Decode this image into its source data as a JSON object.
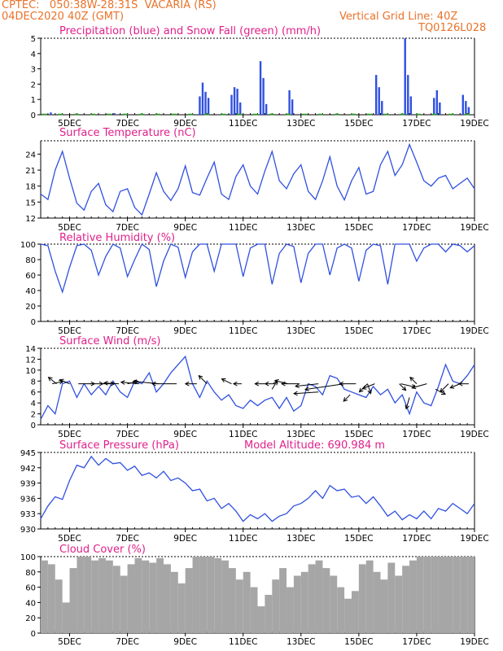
{
  "header": {
    "line1": "CPTEC:   050:38W-28:31S  VACARIA (RS)",
    "line2": "04DEC2020 40Z (GMT)",
    "vertical_grid": "Vertical Grid Line: 40Z",
    "code": "TQ0126L028"
  },
  "colors": {
    "header": "#e8732a",
    "title": "#e0208a",
    "series": "#3050e0",
    "snow": "#20a020",
    "cloud": "#a6a6a6",
    "wind_arrow": "#000000"
  },
  "chart_data": [
    {
      "type": "bar",
      "title": "Precipitation (blue) and Snow Fall (green) (mm/h)",
      "ylim": [
        0,
        5
      ],
      "yticks": [
        0,
        1,
        2,
        3,
        4,
        5
      ],
      "xticks": [
        "5DEC",
        "7DEC",
        "9DEC",
        "11DEC",
        "13DEC",
        "15DEC",
        "17DEC",
        "19DEC"
      ],
      "xrange_days": [
        4.0,
        19.0
      ],
      "precip_bursts": [
        {
          "day": 4.35,
          "value": 0.15
        },
        {
          "day": 6.55,
          "value": 0.1
        },
        {
          "day": 9.5,
          "value": 1.2
        },
        {
          "day": 9.6,
          "value": 2.1
        },
        {
          "day": 9.7,
          "value": 1.5
        },
        {
          "day": 9.8,
          "value": 1.1
        },
        {
          "day": 10.6,
          "value": 1.3
        },
        {
          "day": 10.7,
          "value": 1.8
        },
        {
          "day": 10.8,
          "value": 1.7
        },
        {
          "day": 10.9,
          "value": 0.8
        },
        {
          "day": 11.6,
          "value": 3.5
        },
        {
          "day": 11.7,
          "value": 2.4
        },
        {
          "day": 11.8,
          "value": 0.7
        },
        {
          "day": 12.6,
          "value": 1.6
        },
        {
          "day": 12.7,
          "value": 1.0
        },
        {
          "day": 15.6,
          "value": 2.6
        },
        {
          "day": 15.7,
          "value": 1.8
        },
        {
          "day": 15.8,
          "value": 0.9
        },
        {
          "day": 16.6,
          "value": 5.0
        },
        {
          "day": 16.7,
          "value": 2.6
        },
        {
          "day": 16.8,
          "value": 1.2
        },
        {
          "day": 17.6,
          "value": 1.1
        },
        {
          "day": 17.7,
          "value": 1.6
        },
        {
          "day": 17.8,
          "value": 0.8
        },
        {
          "day": 18.6,
          "value": 1.3
        },
        {
          "day": 18.7,
          "value": 0.9
        },
        {
          "day": 18.8,
          "value": 0.5
        }
      ],
      "snow_fall": "0"
    },
    {
      "type": "line",
      "title": "Surface Temperature (nC)",
      "ylim": [
        12,
        26.5
      ],
      "yticks": [
        12,
        15,
        18,
        21,
        24
      ],
      "xticks": [
        "5DEC",
        "7DEC",
        "9DEC",
        "11DEC",
        "13DEC",
        "15DEC",
        "17DEC",
        "19DEC"
      ],
      "x": [
        4.0,
        4.25,
        4.5,
        4.75,
        5.0,
        5.25,
        5.5,
        5.75,
        6.0,
        6.25,
        6.5,
        6.75,
        7.0,
        7.25,
        7.5,
        7.75,
        8.0,
        8.25,
        8.5,
        8.75,
        9.0,
        9.25,
        9.5,
        9.75,
        10.0,
        10.25,
        10.5,
        10.75,
        11.0,
        11.25,
        11.5,
        11.75,
        12.0,
        12.25,
        12.5,
        12.75,
        13.0,
        13.25,
        13.5,
        13.75,
        14.0,
        14.25,
        14.5,
        14.75,
        15.0,
        15.25,
        15.5,
        15.75,
        16.0,
        16.25,
        16.5,
        16.75,
        17.0,
        17.25,
        17.5,
        17.75,
        18.0,
        18.25,
        18.5,
        18.75,
        19.0
      ],
      "y": [
        16.5,
        15.5,
        21.0,
        24.5,
        19.5,
        14.8,
        13.5,
        17.0,
        18.5,
        14.5,
        13.2,
        17.0,
        17.5,
        14.0,
        12.6,
        16.5,
        20.5,
        17.0,
        15.3,
        17.5,
        21.8,
        16.8,
        16.3,
        19.5,
        22.5,
        16.5,
        15.5,
        19.8,
        22.0,
        18.0,
        16.5,
        20.8,
        24.5,
        19.0,
        17.5,
        20.3,
        22.0,
        17.0,
        15.5,
        19.0,
        23.5,
        18.0,
        15.4,
        19.0,
        21.5,
        16.5,
        17.0,
        22.0,
        24.5,
        20.0,
        22.0,
        25.8,
        22.5,
        19.0,
        18.0,
        19.5,
        20.0,
        17.5,
        18.5,
        19.5,
        17.5
      ]
    },
    {
      "type": "line",
      "title": "Relative Humidity (%)",
      "ylim": [
        0,
        100
      ],
      "yticks": [
        0,
        20,
        40,
        60,
        80,
        100
      ],
      "xticks": [
        "5DEC",
        "7DEC",
        "9DEC",
        "11DEC",
        "13DEC",
        "15DEC",
        "17DEC",
        "19DEC"
      ],
      "x": [
        4.0,
        4.25,
        4.5,
        4.75,
        5.0,
        5.25,
        5.5,
        5.75,
        6.0,
        6.25,
        6.5,
        6.75,
        7.0,
        7.25,
        7.5,
        7.75,
        8.0,
        8.25,
        8.5,
        8.75,
        9.0,
        9.25,
        9.5,
        9.75,
        10.0,
        10.25,
        10.5,
        10.75,
        11.0,
        11.25,
        11.5,
        11.75,
        12.0,
        12.25,
        12.5,
        12.75,
        13.0,
        13.25,
        13.5,
        13.75,
        14.0,
        14.25,
        14.5,
        14.75,
        15.0,
        15.25,
        15.5,
        15.75,
        16.0,
        16.25,
        16.5,
        16.75,
        17.0,
        17.25,
        17.5,
        17.75,
        18.0,
        18.25,
        18.5,
        18.75,
        19.0
      ],
      "y": [
        100,
        98,
        65,
        38,
        70,
        98,
        100,
        92,
        60,
        84,
        100,
        95,
        58,
        80,
        100,
        93,
        45,
        78,
        100,
        96,
        57,
        90,
        100,
        100,
        65,
        100,
        100,
        100,
        58,
        95,
        100,
        100,
        48,
        88,
        100,
        97,
        50,
        88,
        100,
        100,
        60,
        95,
        100,
        95,
        52,
        92,
        100,
        98,
        48,
        100,
        100,
        100,
        78,
        95,
        100,
        100,
        90,
        100,
        98,
        90,
        98
      ]
    },
    {
      "type": "line",
      "title": "Surface Wind (m/s)",
      "ylim": [
        0,
        14
      ],
      "yticks": [
        0,
        2,
        4,
        6,
        8,
        10,
        12,
        14
      ],
      "xticks": [
        "5DEC",
        "7DEC",
        "9DEC",
        "11DEC",
        "13DEC",
        "15DEC",
        "17DEC",
        "19DEC"
      ],
      "x": [
        4.0,
        4.25,
        4.5,
        4.75,
        5.0,
        5.25,
        5.5,
        5.75,
        6.0,
        6.25,
        6.5,
        6.75,
        7.0,
        7.25,
        7.5,
        7.75,
        8.0,
        8.25,
        8.5,
        8.75,
        9.0,
        9.25,
        9.5,
        9.75,
        10.0,
        10.25,
        10.5,
        10.75,
        11.0,
        11.25,
        11.5,
        11.75,
        12.0,
        12.25,
        12.5,
        12.75,
        13.0,
        13.25,
        13.5,
        13.75,
        14.0,
        14.25,
        14.5,
        14.75,
        15.0,
        15.25,
        15.5,
        15.75,
        16.0,
        16.25,
        16.5,
        16.75,
        17.0,
        17.25,
        17.5,
        17.75,
        18.0,
        18.25,
        18.5,
        18.75,
        19.0
      ],
      "y": [
        1.0,
        3.5,
        2.0,
        7.5,
        8.0,
        5.0,
        7.5,
        5.5,
        7.0,
        5.5,
        8.0,
        6.0,
        5.0,
        8.0,
        7.5,
        9.5,
        6.0,
        7.5,
        9.5,
        11.0,
        12.5,
        7.5,
        5.0,
        8.0,
        6.0,
        4.5,
        5.5,
        3.5,
        3.0,
        4.5,
        3.5,
        4.5,
        5.0,
        3.0,
        5.0,
        2.5,
        3.5,
        7.5,
        7.0,
        5.5,
        9.0,
        8.5,
        6.5,
        6.0,
        5.5,
        5.0,
        7.0,
        5.5,
        6.5,
        4.0,
        5.5,
        2.0,
        6.0,
        4.0,
        3.5,
        7.0,
        11.0,
        8.0,
        7.5,
        9.0,
        11.0
      ],
      "arrows": [
        {
          "day": 4.4,
          "level": 7.5,
          "dx": 13,
          "dy": -3
        },
        {
          "day": 4.55,
          "level": 7.5,
          "dx": -10,
          "dy": -8
        },
        {
          "day": 5.0,
          "level": 7.5,
          "dx": -12,
          "dy": -5
        },
        {
          "day": 5.3,
          "level": 7.5,
          "dx": 20,
          "dy": 0
        },
        {
          "day": 5.7,
          "level": 7.5,
          "dx": 16,
          "dy": 0
        },
        {
          "day": 6.1,
          "level": 7.5,
          "dx": 16,
          "dy": 0
        },
        {
          "day": 6.7,
          "level": 7.5,
          "dx": -18,
          "dy": -1
        },
        {
          "day": 7.0,
          "level": 7.5,
          "dx": 13,
          "dy": -3
        },
        {
          "day": 7.4,
          "level": 7.5,
          "dx": -22,
          "dy": -2
        },
        {
          "day": 8.1,
          "level": 7.5,
          "dx": -32,
          "dy": -3
        },
        {
          "day": 8.7,
          "level": 7.5,
          "dx": -30,
          "dy": 0
        },
        {
          "day": 9.4,
          "level": 7.5,
          "dx": -14,
          "dy": 0
        },
        {
          "day": 9.75,
          "level": 7.5,
          "dx": -10,
          "dy": -10
        },
        {
          "day": 10.6,
          "level": 7.5,
          "dx": -12,
          "dy": -6
        },
        {
          "day": 10.95,
          "level": 7.5,
          "dx": -10,
          "dy": 0
        },
        {
          "day": 11.75,
          "level": 7.5,
          "dx": -12,
          "dy": 0
        },
        {
          "day": 12.1,
          "level": 7.5,
          "dx": -12,
          "dy": 0
        },
        {
          "day": 12.0,
          "level": 6.5,
          "dx": 6,
          "dy": -10
        },
        {
          "day": 12.55,
          "level": 7.5,
          "dx": -16,
          "dy": -4
        },
        {
          "day": 12.95,
          "level": 7.5,
          "dx": -22,
          "dy": 0
        },
        {
          "day": 13.6,
          "level": 7.5,
          "dx": -28,
          "dy": 3
        },
        {
          "day": 13.6,
          "level": 6.0,
          "dx": -30,
          "dy": 2
        },
        {
          "day": 14.5,
          "level": 7.5,
          "dx": -48,
          "dy": 7
        },
        {
          "day": 14.7,
          "level": 5.5,
          "dx": -8,
          "dy": 8
        },
        {
          "day": 14.9,
          "level": 7.5,
          "dx": -20,
          "dy": 0
        },
        {
          "day": 15.3,
          "level": 7.5,
          "dx": -10,
          "dy": 10
        },
        {
          "day": 15.3,
          "level": 7.5,
          "dx": 4,
          "dy": 12
        },
        {
          "day": 15.55,
          "level": 7.5,
          "dx": -15,
          "dy": 6
        },
        {
          "day": 16.4,
          "level": 7.5,
          "dx": 8,
          "dy": 8
        },
        {
          "day": 16.45,
          "level": 7.5,
          "dx": 18,
          "dy": 4
        },
        {
          "day": 16.75,
          "level": 5.0,
          "dx": -4,
          "dy": 14
        },
        {
          "day": 17.0,
          "level": 7.5,
          "dx": -8,
          "dy": -8
        },
        {
          "day": 17.35,
          "level": 7.5,
          "dx": -18,
          "dy": 5
        },
        {
          "day": 17.65,
          "level": 6.5,
          "dx": 12,
          "dy": 6
        },
        {
          "day": 18.1,
          "level": 7.5,
          "dx": -10,
          "dy": 10
        },
        {
          "day": 18.5,
          "level": 7.5,
          "dx": -12,
          "dy": 5
        },
        {
          "day": 18.8,
          "level": 7.5,
          "dx": -12,
          "dy": 0
        }
      ]
    },
    {
      "type": "line",
      "title": "Surface Pressure (hPa)",
      "annotation": "Model Altitude: 690.984 m",
      "ylim": [
        930,
        945
      ],
      "yticks": [
        930,
        933,
        936,
        939,
        942,
        945
      ],
      "xticks": [
        "5DEC",
        "7DEC",
        "9DEC",
        "11DEC",
        "13DEC",
        "15DEC",
        "17DEC",
        "19DEC"
      ],
      "x": [
        4.0,
        4.25,
        4.5,
        4.75,
        5.0,
        5.25,
        5.5,
        5.75,
        6.0,
        6.25,
        6.5,
        6.75,
        7.0,
        7.25,
        7.5,
        7.75,
        8.0,
        8.25,
        8.5,
        8.75,
        9.0,
        9.25,
        9.5,
        9.75,
        10.0,
        10.25,
        10.5,
        10.75,
        11.0,
        11.25,
        11.5,
        11.75,
        12.0,
        12.25,
        12.5,
        12.75,
        13.0,
        13.25,
        13.5,
        13.75,
        14.0,
        14.25,
        14.5,
        14.75,
        15.0,
        15.25,
        15.5,
        15.75,
        16.0,
        16.25,
        16.5,
        16.75,
        17.0,
        17.25,
        17.5,
        17.75,
        18.0,
        18.25,
        18.5,
        18.75,
        19.0
      ],
      "y": [
        932.0,
        934.5,
        936.3,
        935.8,
        939.5,
        942.5,
        942.0,
        944.2,
        942.5,
        943.8,
        942.8,
        943.0,
        941.5,
        942.3,
        940.5,
        941.0,
        940.0,
        941.3,
        939.5,
        940.0,
        939.0,
        937.5,
        937.8,
        935.5,
        936.0,
        934.0,
        935.0,
        933.5,
        931.5,
        932.8,
        932.0,
        933.0,
        931.5,
        932.5,
        933.0,
        934.5,
        935.0,
        936.0,
        937.5,
        936.0,
        938.5,
        937.5,
        937.8,
        936.2,
        936.5,
        935.0,
        936.3,
        934.5,
        932.5,
        933.5,
        931.8,
        932.8,
        932.0,
        933.5,
        932.0,
        934.0,
        933.5,
        935.0,
        934.0,
        933.0,
        935.0
      ]
    },
    {
      "type": "bar",
      "title": "Cloud Cover (%)",
      "ylim": [
        0,
        100
      ],
      "yticks": [
        0,
        20,
        40,
        60,
        80,
        100
      ],
      "xticks": [
        "5DEC",
        "7DEC",
        "9DEC",
        "11DEC",
        "13DEC",
        "15DEC",
        "17DEC",
        "19DEC"
      ],
      "x": [
        4.0,
        4.25,
        4.5,
        4.75,
        5.0,
        5.25,
        5.5,
        5.75,
        6.0,
        6.25,
        6.5,
        6.75,
        7.0,
        7.25,
        7.5,
        7.75,
        8.0,
        8.25,
        8.5,
        8.75,
        9.0,
        9.25,
        9.5,
        9.75,
        10.0,
        10.25,
        10.5,
        10.75,
        11.0,
        11.25,
        11.5,
        11.75,
        12.0,
        12.25,
        12.5,
        12.75,
        13.0,
        13.25,
        13.5,
        13.75,
        14.0,
        14.25,
        14.5,
        14.75,
        15.0,
        15.25,
        15.5,
        15.75,
        16.0,
        16.25,
        16.5,
        16.75,
        17.0,
        17.25,
        17.5,
        17.75,
        18.0,
        18.25,
        18.5,
        18.75
      ],
      "values": [
        95,
        90,
        70,
        40,
        85,
        100,
        100,
        95,
        98,
        95,
        88,
        75,
        90,
        98,
        95,
        92,
        98,
        90,
        80,
        65,
        85,
        100,
        100,
        100,
        98,
        95,
        85,
        70,
        80,
        60,
        35,
        50,
        70,
        85,
        60,
        75,
        80,
        90,
        95,
        85,
        75,
        60,
        45,
        55,
        90,
        95,
        80,
        70,
        92,
        75,
        88,
        95,
        100,
        100,
        100,
        100,
        100,
        100,
        100,
        100
      ]
    }
  ]
}
